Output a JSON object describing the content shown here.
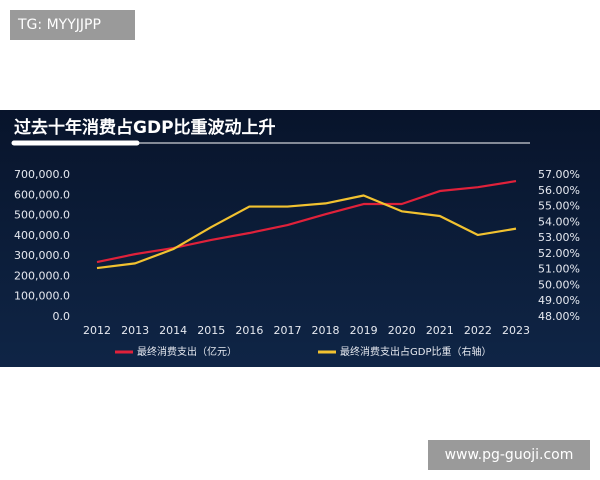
{
  "watermark": {
    "top": "TG: MYYJJPP",
    "bottom": "www.pg-guoji.com"
  },
  "chart_data": {
    "type": "line",
    "title": "过去十年消费占GDP比重波动上升",
    "categories": [
      "2012",
      "2013",
      "2014",
      "2015",
      "2016",
      "2017",
      "2018",
      "2019",
      "2020",
      "2021",
      "2022",
      "2023"
    ],
    "series": [
      {
        "name": "最终消费支出（亿元）",
        "color": "#e0213a",
        "values": [
          271000,
          310000,
          340000,
          380000,
          414000,
          453000,
          507000,
          557000,
          557000,
          621000,
          640000,
          670000
        ]
      },
      {
        "name": "最终消费支出占GDP比重（右轴）",
        "color": "#f2c230",
        "axis": "y2",
        "values": [
          51.1,
          51.4,
          52.3,
          53.7,
          55.0,
          55.0,
          55.2,
          55.7,
          54.7,
          54.4,
          53.2,
          53.6
        ]
      }
    ],
    "ylim": [
      0,
      700000
    ],
    "yticks": [
      {
        "value": 0,
        "label": "0.0"
      },
      {
        "value": 100000,
        "label": "100,000.0"
      },
      {
        "value": 200000,
        "label": "200,000.0"
      },
      {
        "value": 300000,
        "label": "300,000.0"
      },
      {
        "value": 400000,
        "label": "400,000.0"
      },
      {
        "value": 500000,
        "label": "500,000.0"
      },
      {
        "value": 600000,
        "label": "600,000.0"
      },
      {
        "value": 700000,
        "label": "700,000.0"
      }
    ],
    "y2lim": [
      48,
      57
    ],
    "y2ticks": [
      {
        "value": 48,
        "label": "48.00%"
      },
      {
        "value": 49,
        "label": "49.00%"
      },
      {
        "value": 50,
        "label": "50.00%"
      },
      {
        "value": 51,
        "label": "51.00%"
      },
      {
        "value": 52,
        "label": "52.00%"
      },
      {
        "value": 53,
        "label": "53.00%"
      },
      {
        "value": 54,
        "label": "54.00%"
      },
      {
        "value": 55,
        "label": "55.00%"
      },
      {
        "value": 56,
        "label": "56.00%"
      },
      {
        "value": 57,
        "label": "57.00%"
      }
    ]
  }
}
